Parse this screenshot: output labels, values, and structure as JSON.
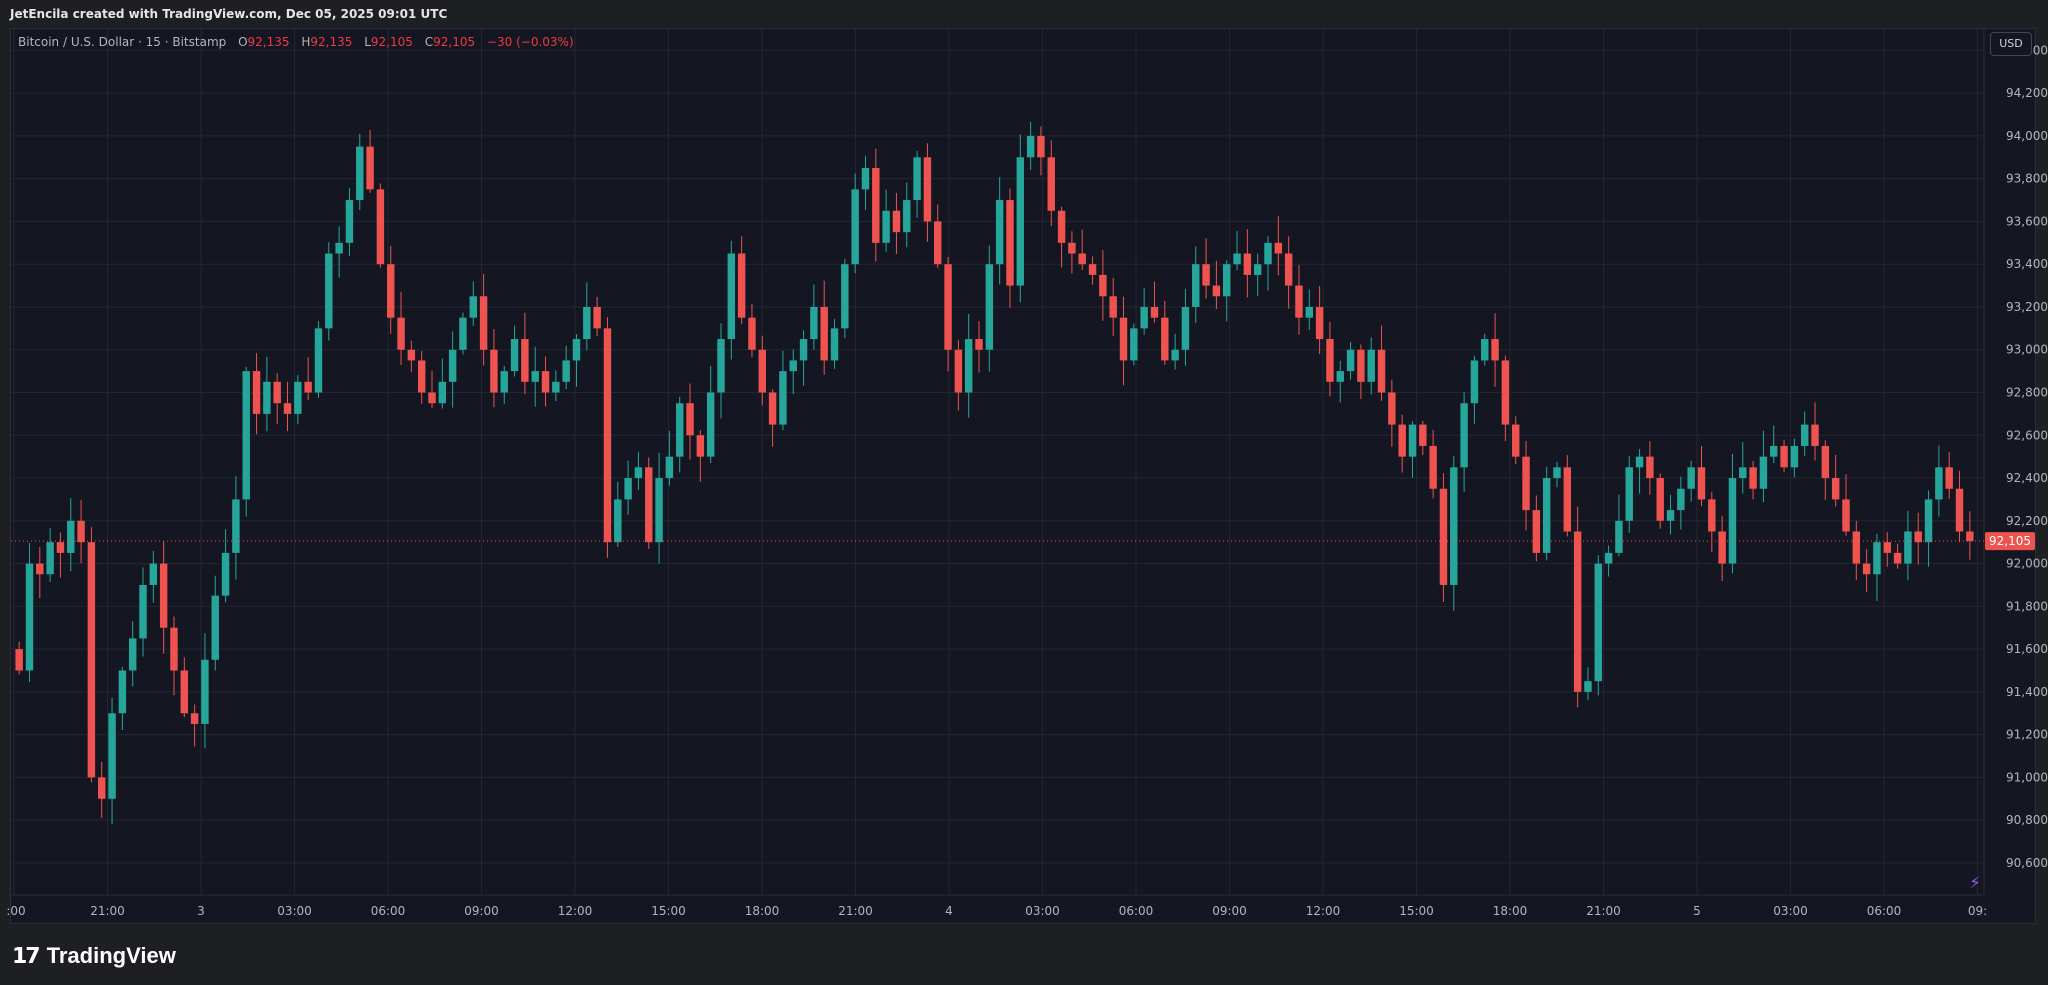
{
  "header": {
    "created_text": "JetEncila created with TradingView.com, Dec 05, 2025 09:01 UTC"
  },
  "legend": {
    "symbol": "Bitcoin / U.S. Dollar · 15 · Bitstamp",
    "o_label": "O",
    "o_value": "92,135",
    "h_label": "H",
    "h_value": "92,135",
    "l_label": "L",
    "l_value": "92,105",
    "c_label": "C",
    "c_value": "92,105",
    "change": "−30 (−0.03%)"
  },
  "currency_button": "USD",
  "last_price_label": "92,105",
  "footer": {
    "brand": "TradingView"
  },
  "colors": {
    "up": "#26a69a",
    "down": "#ef5350",
    "background": "#141722",
    "grid": "#232632",
    "axis_text": "#b2b5be"
  },
  "chart_data": {
    "type": "candlestick",
    "title": "Bitcoin / U.S. Dollar · 15 · Bitstamp",
    "y_ticks": [
      90600,
      90800,
      91000,
      91200,
      91400,
      91600,
      91800,
      92000,
      92200,
      92400,
      92600,
      92800,
      93000,
      93200,
      93400,
      93600,
      93800,
      94000,
      94200,
      94400
    ],
    "ylim": [
      90450,
      94500
    ],
    "x_ticks": [
      ":00",
      "21:00",
      "3",
      "03:00",
      "06:00",
      "09:00",
      "12:00",
      "15:00",
      "18:00",
      "21:00",
      "4",
      "03:00",
      "06:00",
      "09:00",
      "12:00",
      "15:00",
      "18:00",
      "21:00",
      "5",
      "03:00",
      "06:00",
      "09:"
    ],
    "last_price": 92105,
    "path": [
      91600,
      91500,
      92000,
      91950,
      92100,
      92050,
      92200,
      92100,
      91000,
      90900,
      91300,
      91500,
      91650,
      91900,
      92000,
      91700,
      91500,
      91300,
      91250,
      91550,
      91850,
      92050,
      92300,
      92900,
      92700,
      92850,
      92750,
      92700,
      92850,
      92800,
      93100,
      93450,
      93500,
      93700,
      93950,
      93750,
      93400,
      93150,
      93000,
      92950,
      92800,
      92750,
      92850,
      93000,
      93150,
      93250,
      93000,
      92800,
      92900,
      93050,
      92850,
      92900,
      92800,
      92850,
      92950,
      93050,
      93200,
      93100,
      92100,
      92300,
      92400,
      92450,
      92100,
      92400,
      92500,
      92750,
      92600,
      92500,
      92800,
      93050,
      93450,
      93150,
      93000,
      92800,
      92650,
      92900,
      92950,
      93050,
      93200,
      92950,
      93100,
      93400,
      93750,
      93850,
      93500,
      93650,
      93550,
      93700,
      93900,
      93600,
      93400,
      93000,
      92800,
      93050,
      93000,
      93400,
      93700,
      93300,
      93900,
      94000,
      93900,
      93650,
      93500,
      93450,
      93400,
      93350,
      93250,
      93150,
      92950,
      93100,
      93200,
      93150,
      92950,
      93000,
      93200,
      93400,
      93300,
      93250,
      93400,
      93450,
      93350,
      93400,
      93500,
      93450,
      93300,
      93150,
      93200,
      93050,
      92850,
      92900,
      93000,
      92850,
      93000,
      92800,
      92650,
      92500,
      92650,
      92550,
      92350,
      91900,
      92450,
      92750,
      92950,
      93050,
      92950,
      92650,
      92500,
      92250,
      92050,
      92400,
      92450,
      92150,
      91400,
      91450,
      92000,
      92050,
      92200,
      92450,
      92500,
      92400,
      92200,
      92250,
      92350,
      92450,
      92300,
      92150,
      92000,
      92400,
      92450,
      92350,
      92500,
      92550,
      92450,
      92550,
      92650,
      92550,
      92400,
      92300,
      92150,
      92000,
      91950,
      92100,
      92050,
      92000,
      92150,
      92100,
      92300,
      92450,
      92350,
      92150,
      92105
    ]
  }
}
